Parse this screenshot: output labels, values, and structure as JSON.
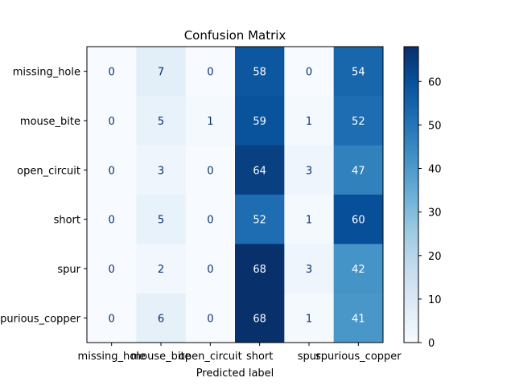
{
  "chart_data": {
    "type": "heatmap",
    "title": "Confusion Matrix",
    "xlabel": "Predicted label",
    "ylabel": "",
    "x_categories": [
      "missing_hole",
      "mouse_bite",
      "open_circuit",
      "short",
      "spur",
      "spurious_copper"
    ],
    "y_categories": [
      "missing_hole",
      "mouse_bite",
      "open_circuit",
      "short",
      "spur",
      "spurious_copper"
    ],
    "values": [
      [
        0,
        7,
        0,
        58,
        0,
        54
      ],
      [
        0,
        5,
        1,
        59,
        1,
        52
      ],
      [
        0,
        3,
        0,
        64,
        3,
        47
      ],
      [
        0,
        5,
        0,
        52,
        1,
        60
      ],
      [
        0,
        2,
        0,
        68,
        3,
        42
      ],
      [
        0,
        6,
        0,
        68,
        1,
        41
      ]
    ],
    "colorbar": {
      "min": 0,
      "max": 68,
      "ticks": [
        0,
        10,
        20,
        30,
        40,
        50,
        60
      ]
    },
    "colormap": "Blues",
    "grid": false
  }
}
